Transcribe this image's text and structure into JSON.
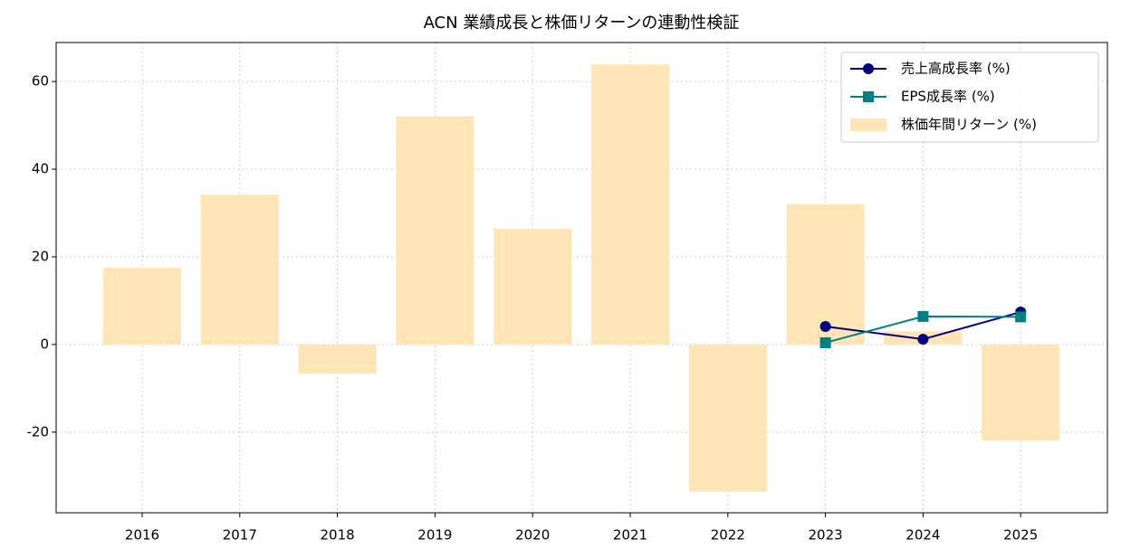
{
  "chart_data": {
    "type": "combo",
    "title": "ACN 業績成長と株価リターンの連動性検証",
    "categories": [
      "2016",
      "2017",
      "2018",
      "2019",
      "2020",
      "2021",
      "2022",
      "2023",
      "2024",
      "2025"
    ],
    "series": [
      {
        "name": "売上高成長率 (%)",
        "type": "line",
        "marker": "circle",
        "color": "#000080",
        "values": [
          null,
          null,
          null,
          null,
          null,
          null,
          null,
          4.1,
          1.2,
          7.4
        ]
      },
      {
        "name": "EPS成長率 (%)",
        "type": "line",
        "marker": "square",
        "color": "#008080",
        "values": [
          null,
          null,
          null,
          null,
          null,
          null,
          null,
          0.4,
          6.4,
          6.3
        ]
      },
      {
        "name": "株価年間リターン (%)",
        "type": "bar",
        "color": "#ffe4b5",
        "values": [
          17.5,
          34.2,
          -6.6,
          52.0,
          26.4,
          63.9,
          -33.6,
          32.0,
          3.0,
          -21.9
        ]
      }
    ],
    "ylim": [
      -38.4,
      68.9
    ],
    "yticks": [
      -20,
      0,
      20,
      40,
      60
    ],
    "grid": true,
    "legend": "upper right"
  }
}
